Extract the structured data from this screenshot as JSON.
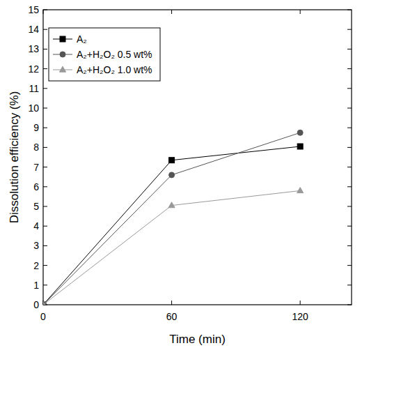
{
  "chart_data": {
    "type": "line",
    "x_label": "Time (min)",
    "y_label": "Dissolution efficiency (%)",
    "x": [
      0,
      60,
      120
    ],
    "xlim": [
      0,
      144
    ],
    "xticks": [
      0,
      60,
      120
    ],
    "ylim": [
      0,
      15
    ],
    "yticks": [
      0,
      1,
      2,
      3,
      4,
      5,
      6,
      7,
      8,
      9,
      10,
      11,
      12,
      13,
      14,
      15
    ],
    "grid": false,
    "legend": "upper left",
    "series": [
      {
        "name": "A₂",
        "color": "#000000",
        "marker": "square",
        "values": [
          0,
          7.35,
          8.05
        ]
      },
      {
        "name": "A₂+H₂O₂ 0.5 wt%",
        "color": "#555555",
        "marker": "circle",
        "values": [
          0,
          6.6,
          8.75
        ]
      },
      {
        "name": "A₂+H₂O₂ 1.0 wt%",
        "color": "#999999",
        "marker": "triangle",
        "values": [
          0,
          5.05,
          5.8
        ]
      }
    ]
  }
}
